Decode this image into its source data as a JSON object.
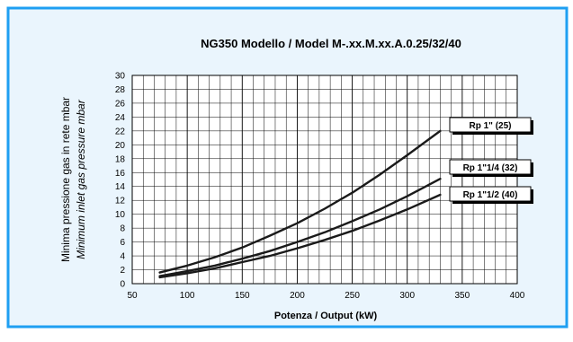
{
  "colors": {
    "panel_bg": "#eaf5fd",
    "panel_border": "#1e9ff2",
    "plot_bg": "#ffffff",
    "grid": "#000000",
    "curve": "#1a1a1a",
    "label_shadow": "#000000"
  },
  "chart_data": {
    "type": "line",
    "title": "NG350   Modello / Model M-.xx.M.xx.A.0.25/32/40",
    "xlabel": "Potenza / Output (kW)",
    "ylabel_line1": "Minima pressione gas in rete mbar",
    "ylabel_line2": "Minimum inlet gas pressure mbar",
    "xlim": [
      50,
      400
    ],
    "ylim": [
      0,
      30
    ],
    "x_ticks": [
      50,
      100,
      150,
      200,
      250,
      300,
      350,
      400
    ],
    "y_ticks": [
      0,
      2,
      4,
      6,
      8,
      10,
      12,
      14,
      16,
      18,
      20,
      22,
      24,
      26,
      28,
      30
    ],
    "x_minor_step": 10,
    "y_minor_step": 2,
    "grid": true,
    "series": [
      {
        "name": "Rp 1\" (25)",
        "x": [
          75,
          100,
          125,
          150,
          175,
          200,
          225,
          250,
          275,
          300,
          330
        ],
        "values": [
          1.6,
          2.6,
          3.8,
          5.2,
          6.9,
          8.7,
          10.8,
          13.1,
          15.7,
          18.5,
          22.0
        ]
      },
      {
        "name": "Rp 1\"1/4 (32)",
        "x": [
          75,
          100,
          125,
          150,
          175,
          200,
          225,
          250,
          275,
          300,
          330
        ],
        "values": [
          1.1,
          1.8,
          2.6,
          3.6,
          4.7,
          6.0,
          7.4,
          9.0,
          10.7,
          12.6,
          15.1
        ]
      },
      {
        "name": "Rp 1\"1/2 (40)",
        "x": [
          75,
          100,
          125,
          150,
          175,
          200,
          225,
          250,
          275,
          300,
          330
        ],
        "values": [
          0.9,
          1.5,
          2.2,
          3.1,
          4.0,
          5.1,
          6.3,
          7.6,
          9.1,
          10.7,
          12.8
        ]
      }
    ]
  }
}
